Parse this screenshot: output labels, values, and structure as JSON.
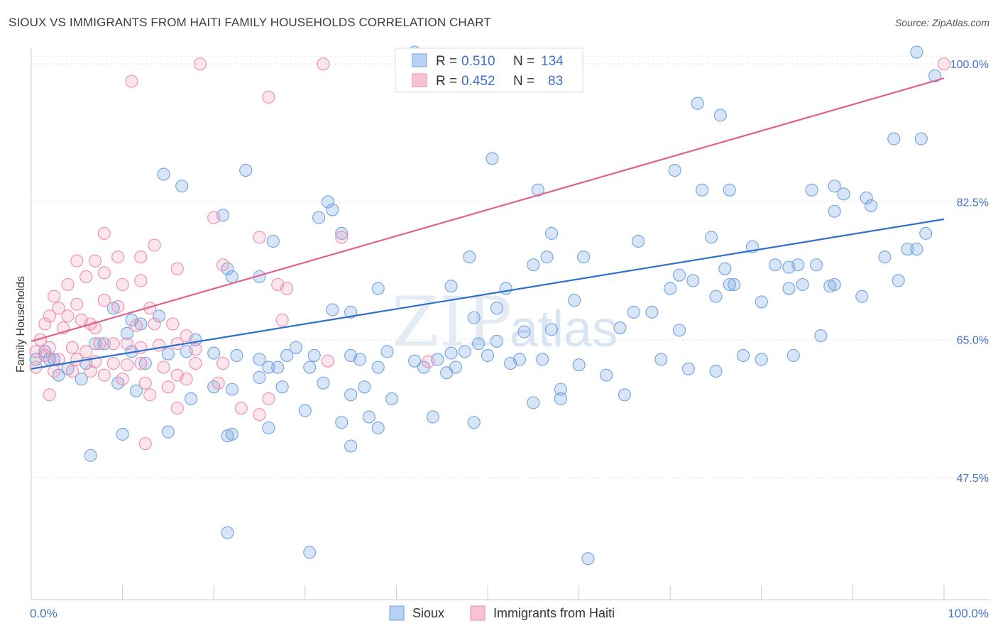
{
  "chart_data": {
    "type": "scatter",
    "title": "SIOUX VS IMMIGRANTS FROM HAITI FAMILY HOUSEHOLDS CORRELATION CHART",
    "source": "Source: ZipAtlas.com",
    "xlabel": "",
    "ylabel": "Family Households",
    "xlim": [
      0,
      100
    ],
    "ylim": [
      32,
      102
    ],
    "x_ticks": [
      "0.0%",
      "100.0%"
    ],
    "y_ticks": [
      {
        "value": 47.5,
        "label": "47.5%"
      },
      {
        "value": 65.0,
        "label": "65.0%"
      },
      {
        "value": 82.5,
        "label": "82.5%"
      },
      {
        "value": 100.0,
        "label": "100.0%"
      }
    ],
    "grid": true,
    "watermark": {
      "zip": "ZIP",
      "atlas": "atlas"
    },
    "legend": {
      "position": "top-center",
      "entries": [
        {
          "name": "Sioux",
          "r_label": "R =",
          "r_value": "0.510",
          "n_label": "N =",
          "n_value": "134",
          "color": "#6fa3e3"
        },
        {
          "name": "Immigrants from Haiti",
          "r_label": "R =",
          "r_value": "0.452",
          "n_label": "N =",
          "n_value": "83",
          "color": "#f08bab"
        }
      ]
    },
    "series": [
      {
        "name": "Sioux",
        "color": "#6fa3e3",
        "trend": {
          "x": [
            0,
            100
          ],
          "y": [
            61.3,
            80.3
          ],
          "color": "#2f6fcc"
        },
        "points": [
          [
            42,
            101.5
          ],
          [
            75.5,
            93.5
          ],
          [
            73,
            95
          ],
          [
            97,
            101.5
          ],
          [
            99,
            98.5
          ],
          [
            94.5,
            90.5
          ],
          [
            97.5,
            90.5
          ],
          [
            50.5,
            88
          ],
          [
            14.5,
            86
          ],
          [
            23.5,
            86.5
          ],
          [
            70.5,
            86.5
          ],
          [
            16.5,
            84.5
          ],
          [
            55.5,
            84
          ],
          [
            73.5,
            84
          ],
          [
            76.5,
            84
          ],
          [
            85.5,
            84
          ],
          [
            88,
            84.5
          ],
          [
            89,
            83.5
          ],
          [
            91.5,
            83
          ],
          [
            88,
            81.3
          ],
          [
            92,
            82
          ],
          [
            21,
            80.8
          ],
          [
            32.5,
            82.5
          ],
          [
            33,
            81.5
          ],
          [
            31.5,
            80.5
          ],
          [
            34,
            78.5
          ],
          [
            57,
            78.5
          ],
          [
            74.5,
            78
          ],
          [
            66.5,
            77.5
          ],
          [
            98,
            78.5
          ],
          [
            96,
            76.5
          ],
          [
            26.5,
            77.5
          ],
          [
            48,
            75.5
          ],
          [
            55,
            74.5
          ],
          [
            56.5,
            75.5
          ],
          [
            60.5,
            75.5
          ],
          [
            71,
            73.2
          ],
          [
            72.5,
            72.5
          ],
          [
            76,
            74
          ],
          [
            77,
            72
          ],
          [
            79,
            76.8
          ],
          [
            81.5,
            74.5
          ],
          [
            83,
            74.2
          ],
          [
            84,
            74.5
          ],
          [
            86,
            74.5
          ],
          [
            84.5,
            72
          ],
          [
            93.5,
            75.5
          ],
          [
            21.5,
            74
          ],
          [
            22,
            73
          ],
          [
            25,
            73
          ],
          [
            38,
            71.5
          ],
          [
            46,
            71.8
          ],
          [
            52,
            71.5
          ],
          [
            59.5,
            70
          ],
          [
            70,
            71.5
          ],
          [
            75,
            70.5
          ],
          [
            76.5,
            72
          ],
          [
            83,
            71.5
          ],
          [
            87.5,
            71.8
          ],
          [
            80,
            69.8
          ],
          [
            88,
            72
          ],
          [
            91,
            70.5
          ],
          [
            95,
            72.5
          ],
          [
            97,
            76.5
          ],
          [
            33,
            68.8
          ],
          [
            35,
            68.5
          ],
          [
            48.5,
            67.8
          ],
          [
            51,
            69
          ],
          [
            64.5,
            66.5
          ],
          [
            66,
            68.5
          ],
          [
            68,
            68.5
          ],
          [
            71,
            66.2
          ],
          [
            57,
            66.3
          ],
          [
            54,
            66
          ],
          [
            9,
            69
          ],
          [
            11,
            67.5
          ],
          [
            14,
            68
          ],
          [
            12,
            67
          ],
          [
            10.5,
            65.8
          ],
          [
            8,
            64.5
          ],
          [
            11,
            63.5
          ],
          [
            12.5,
            62
          ],
          [
            15,
            63.2
          ],
          [
            17,
            63.5
          ],
          [
            18,
            65
          ],
          [
            20,
            63.3
          ],
          [
            22.5,
            63
          ],
          [
            25,
            62.5
          ],
          [
            26,
            61.5
          ],
          [
            27,
            61.5
          ],
          [
            28,
            63
          ],
          [
            29,
            64
          ],
          [
            30.5,
            61.5
          ],
          [
            31,
            63
          ],
          [
            35,
            63
          ],
          [
            36,
            62.5
          ],
          [
            38,
            61.5
          ],
          [
            39,
            63.5
          ],
          [
            42,
            62.3
          ],
          [
            43,
            61.5
          ],
          [
            44.5,
            62.5
          ],
          [
            45.5,
            60.8
          ],
          [
            46,
            63.3
          ],
          [
            47.5,
            63.5
          ],
          [
            50,
            63
          ],
          [
            51,
            64.8
          ],
          [
            52.5,
            62
          ],
          [
            53.5,
            62.5
          ],
          [
            46.5,
            61.5
          ],
          [
            49,
            64.5
          ],
          [
            56,
            62.5
          ],
          [
            60,
            61.8
          ],
          [
            63,
            60.5
          ],
          [
            69,
            62.5
          ],
          [
            72,
            61.3
          ],
          [
            75,
            61
          ],
          [
            78,
            63
          ],
          [
            80,
            62.5
          ],
          [
            83.5,
            63
          ],
          [
            86.5,
            65.5
          ],
          [
            2.5,
            62.5
          ],
          [
            4,
            61.3
          ],
          [
            6,
            62
          ],
          [
            7,
            64.5
          ],
          [
            3,
            60.5
          ],
          [
            5.5,
            60
          ],
          [
            9.5,
            59.5
          ],
          [
            2,
            62.5
          ],
          [
            20,
            59
          ],
          [
            22,
            58.7
          ],
          [
            25,
            60.2
          ],
          [
            27.5,
            59
          ],
          [
            32,
            59.5
          ],
          [
            35,
            58
          ],
          [
            36.5,
            59
          ],
          [
            39.5,
            57.5
          ],
          [
            55,
            57
          ],
          [
            58,
            58.7
          ],
          [
            65,
            58
          ],
          [
            37,
            55.2
          ],
          [
            34,
            54.5
          ],
          [
            30,
            56
          ],
          [
            26,
            53.8
          ],
          [
            21.5,
            52.8
          ],
          [
            38,
            53.8
          ],
          [
            44,
            55.2
          ],
          [
            48.5,
            54.5
          ],
          [
            35,
            51.5
          ],
          [
            10,
            53
          ],
          [
            15,
            53.3
          ],
          [
            22,
            53
          ],
          [
            58,
            57.5
          ],
          [
            21.5,
            40.5
          ],
          [
            30.5,
            38
          ],
          [
            61,
            37.2
          ],
          [
            6.5,
            50.3
          ],
          [
            17.5,
            57.5
          ],
          [
            11.5,
            58.5
          ],
          [
            0.5,
            62.5
          ],
          [
            1.5,
            63.5
          ]
        ]
      },
      {
        "name": "Immigrants from Haiti",
        "color": "#f08bab",
        "trend": {
          "x": [
            0,
            100
          ],
          "y": [
            64.8,
            98.2
          ],
          "color": "#e0608e"
        },
        "points": [
          [
            18.5,
            100
          ],
          [
            32,
            100
          ],
          [
            100,
            100
          ],
          [
            11,
            97.8
          ],
          [
            26,
            95.8
          ],
          [
            20,
            80.5
          ],
          [
            8,
            78.5
          ],
          [
            13.5,
            77
          ],
          [
            25,
            78
          ],
          [
            5,
            75
          ],
          [
            7,
            75
          ],
          [
            9.5,
            75.5
          ],
          [
            12,
            75.5
          ],
          [
            16,
            74
          ],
          [
            21,
            74.5
          ],
          [
            8,
            73.5
          ],
          [
            6,
            73
          ],
          [
            4,
            72
          ],
          [
            10,
            72
          ],
          [
            12,
            72.5
          ],
          [
            27,
            72
          ],
          [
            28,
            71.5
          ],
          [
            2.5,
            70.5
          ],
          [
            3,
            69
          ],
          [
            5,
            69.5
          ],
          [
            8,
            70
          ],
          [
            9.5,
            69.2
          ],
          [
            13,
            69
          ],
          [
            2,
            68
          ],
          [
            4,
            68
          ],
          [
            5.5,
            67.5
          ],
          [
            6.5,
            67
          ],
          [
            1.5,
            67
          ],
          [
            3.5,
            66.5
          ],
          [
            7,
            66.5
          ],
          [
            11.5,
            66.8
          ],
          [
            13.5,
            67
          ],
          [
            15.5,
            67
          ],
          [
            17,
            65.5
          ],
          [
            27.5,
            67.5
          ],
          [
            1,
            65
          ],
          [
            2,
            64
          ],
          [
            4.5,
            64
          ],
          [
            6,
            63.5
          ],
          [
            7.5,
            64.5
          ],
          [
            9,
            64.5
          ],
          [
            10.5,
            64.5
          ],
          [
            12,
            64
          ],
          [
            14,
            64.3
          ],
          [
            16,
            64.5
          ],
          [
            18,
            63.8
          ],
          [
            0.5,
            63.5
          ],
          [
            1.5,
            63
          ],
          [
            3,
            62.5
          ],
          [
            5,
            62.5
          ],
          [
            7,
            62.2
          ],
          [
            9,
            62
          ],
          [
            10.5,
            61.8
          ],
          [
            12,
            62
          ],
          [
            14.5,
            61.5
          ],
          [
            16,
            60.5
          ],
          [
            18,
            62
          ],
          [
            21,
            62
          ],
          [
            0.5,
            61.5
          ],
          [
            2.5,
            61
          ],
          [
            4.5,
            61
          ],
          [
            6.5,
            61
          ],
          [
            8,
            60.5
          ],
          [
            10,
            60
          ],
          [
            12.5,
            59.5
          ],
          [
            15,
            59
          ],
          [
            17,
            60
          ],
          [
            2,
            58
          ],
          [
            13,
            58
          ],
          [
            26,
            57.5
          ],
          [
            16,
            56.3
          ],
          [
            23,
            56.3
          ],
          [
            25,
            55.5
          ],
          [
            12.5,
            51.8
          ],
          [
            34,
            78
          ],
          [
            43.5,
            62.2
          ],
          [
            32.5,
            62.3
          ],
          [
            20.5,
            59.5
          ]
        ]
      }
    ]
  }
}
